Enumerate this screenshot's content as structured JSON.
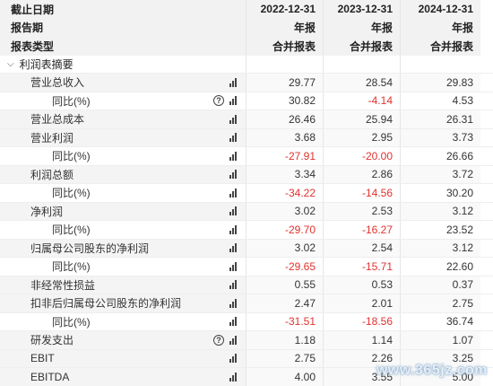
{
  "header": {
    "rows": [
      {
        "label": "截止日期",
        "values": [
          "2022-12-31",
          "2023-12-31",
          "2024-12-31"
        ]
      },
      {
        "label": "报告期",
        "values": [
          "年报",
          "年报",
          "年报"
        ]
      },
      {
        "label": "报表类型",
        "values": [
          "合并报表",
          "合并报表",
          "合并报表"
        ]
      }
    ]
  },
  "section": {
    "label": "利润表摘要",
    "chevron": "chevron-down-icon"
  },
  "rows": [
    {
      "label": "营业总收入",
      "level": 1,
      "help": false,
      "values": [
        "29.77",
        "28.54",
        "29.83"
      ],
      "neg": [
        false,
        false,
        false
      ]
    },
    {
      "label": "同比(%)",
      "level": 2,
      "help": true,
      "values": [
        "30.82",
        "-4.14",
        "4.53"
      ],
      "neg": [
        false,
        true,
        false
      ]
    },
    {
      "label": "营业总成本",
      "level": 1,
      "help": false,
      "values": [
        "26.46",
        "25.94",
        "26.31"
      ],
      "neg": [
        false,
        false,
        false
      ]
    },
    {
      "label": "营业利润",
      "level": 1,
      "help": false,
      "values": [
        "3.68",
        "2.95",
        "3.73"
      ],
      "neg": [
        false,
        false,
        false
      ]
    },
    {
      "label": "同比(%)",
      "level": 2,
      "help": false,
      "values": [
        "-27.91",
        "-20.00",
        "26.66"
      ],
      "neg": [
        true,
        true,
        false
      ]
    },
    {
      "label": "利润总额",
      "level": 1,
      "help": false,
      "values": [
        "3.34",
        "2.86",
        "3.72"
      ],
      "neg": [
        false,
        false,
        false
      ]
    },
    {
      "label": "同比(%)",
      "level": 2,
      "help": false,
      "values": [
        "-34.22",
        "-14.56",
        "30.20"
      ],
      "neg": [
        true,
        true,
        false
      ]
    },
    {
      "label": "净利润",
      "level": 1,
      "help": false,
      "values": [
        "3.02",
        "2.53",
        "3.12"
      ],
      "neg": [
        false,
        false,
        false
      ]
    },
    {
      "label": "同比(%)",
      "level": 2,
      "help": false,
      "values": [
        "-29.70",
        "-16.27",
        "23.52"
      ],
      "neg": [
        true,
        true,
        false
      ]
    },
    {
      "label": "归属母公司股东的净利润",
      "level": 1,
      "help": false,
      "values": [
        "3.02",
        "2.54",
        "3.12"
      ],
      "neg": [
        false,
        false,
        false
      ]
    },
    {
      "label": "同比(%)",
      "level": 2,
      "help": false,
      "values": [
        "-29.65",
        "-15.71",
        "22.60"
      ],
      "neg": [
        true,
        true,
        false
      ]
    },
    {
      "label": "非经常性损益",
      "level": 1,
      "help": false,
      "values": [
        "0.55",
        "0.53",
        "0.37"
      ],
      "neg": [
        false,
        false,
        false
      ]
    },
    {
      "label": "扣非后归属母公司股东的净利润",
      "level": 1,
      "help": false,
      "values": [
        "2.47",
        "2.01",
        "2.75"
      ],
      "neg": [
        false,
        false,
        false
      ]
    },
    {
      "label": "同比(%)",
      "level": 2,
      "help": false,
      "values": [
        "-31.51",
        "-18.56",
        "36.74"
      ],
      "neg": [
        true,
        true,
        false
      ]
    },
    {
      "label": "研发支出",
      "level": 1,
      "help": true,
      "values": [
        "1.18",
        "1.14",
        "1.07"
      ],
      "neg": [
        false,
        false,
        false
      ]
    },
    {
      "label": "EBIT",
      "level": 1,
      "help": false,
      "values": [
        "2.75",
        "2.26",
        "3.25"
      ],
      "neg": [
        false,
        false,
        false
      ]
    },
    {
      "label": "EBITDA",
      "level": 1,
      "help": false,
      "values": [
        "4.00",
        "3.55",
        "5.00"
      ],
      "neg": [
        false,
        false,
        false
      ]
    }
  ],
  "watermark": "www.365jz.com",
  "icons": {
    "help": "help-circle-icon",
    "chart": "bar-chart-icon",
    "help_glyph": "?"
  }
}
